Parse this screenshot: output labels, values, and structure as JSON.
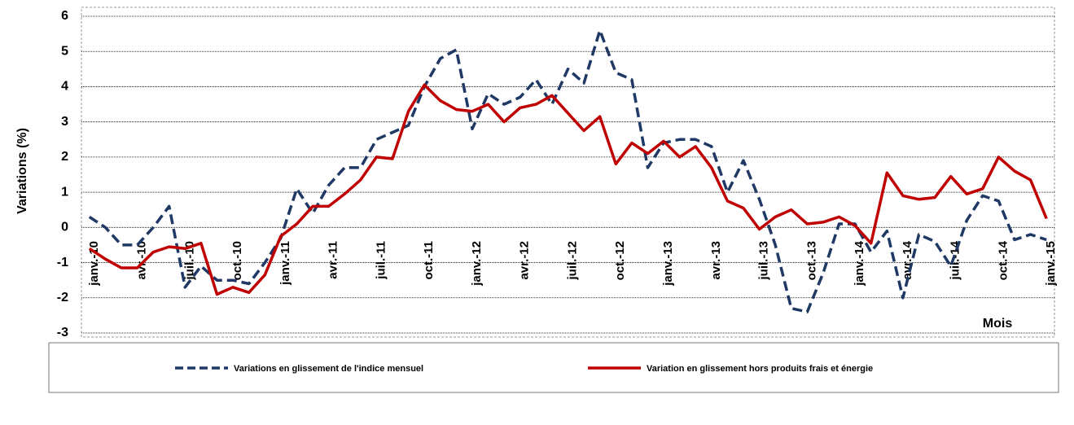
{
  "chart_data": {
    "type": "line",
    "y_label": "Variations (%)",
    "x_label": "Mois",
    "categories": [
      "janv.-10",
      null,
      null,
      "avr.-10",
      null,
      null,
      "juil.-10",
      null,
      null,
      "oct.-10",
      null,
      null,
      "janv.-11",
      null,
      null,
      "avr.-11",
      null,
      null,
      "juil.-11",
      null,
      null,
      "oct.-11",
      null,
      null,
      "janv.-12",
      null,
      null,
      "avr.-12",
      null,
      null,
      "juil.-12",
      null,
      null,
      "oct.-12",
      null,
      null,
      "janv.-13",
      null,
      null,
      "avr.-13",
      null,
      null,
      "juil.-13",
      null,
      null,
      "oct.-13",
      null,
      null,
      "janv.-14",
      null,
      null,
      "avr.-14",
      null,
      null,
      "juil.-14",
      null,
      null,
      "oct.-14",
      null,
      null,
      "janv.-15"
    ],
    "series": [
      {
        "name": "Variations en glissement de l'indice mensuel",
        "color": "#1f3864",
        "dash": true,
        "values": [
          0.3,
          0.0,
          -0.5,
          -0.5,
          0.0,
          0.6,
          -1.7,
          -1.1,
          -1.5,
          -1.5,
          -1.6,
          -1.0,
          -0.3,
          1.1,
          0.4,
          1.2,
          1.7,
          1.7,
          2.5,
          2.7,
          2.9,
          4.0,
          4.8,
          5.05,
          2.8,
          3.8,
          3.5,
          3.7,
          4.2,
          3.5,
          4.5,
          4.1,
          5.6,
          4.4,
          4.2,
          1.7,
          2.4,
          2.5,
          2.5,
          2.3,
          1.0,
          1.9,
          0.8,
          -0.5,
          -2.3,
          -2.4,
          -1.3,
          0.1,
          0.1,
          -0.7,
          -0.1,
          -2.0,
          -0.2,
          -0.4,
          -1.1,
          0.2,
          0.9,
          0.75,
          -0.35,
          -0.2,
          -0.35
        ]
      },
      {
        "name": "Variation en glissement hors produits frais et énergie",
        "color": "#c00000",
        "dash": false,
        "values": [
          -0.6,
          -0.9,
          -1.15,
          -1.15,
          -0.7,
          -0.55,
          -0.6,
          -0.45,
          -1.9,
          -1.7,
          -1.85,
          -1.35,
          -0.25,
          0.1,
          0.6,
          0.6,
          0.95,
          1.35,
          2.0,
          1.95,
          3.3,
          4.05,
          3.6,
          3.35,
          3.3,
          3.5,
          3.0,
          3.4,
          3.5,
          3.75,
          3.25,
          2.75,
          3.15,
          1.8,
          2.4,
          2.1,
          2.45,
          2.0,
          2.3,
          1.7,
          0.75,
          0.55,
          -0.05,
          0.3,
          0.5,
          0.1,
          0.15,
          0.3,
          0.05,
          -0.45,
          1.55,
          0.9,
          0.8,
          0.85,
          1.45,
          0.95,
          1.1,
          2.0,
          1.6,
          1.35,
          0.25
        ]
      }
    ],
    "ylim": [
      -3,
      6
    ],
    "yticks": [
      -3,
      -2,
      -1,
      0,
      1,
      2,
      3,
      4,
      5,
      6
    ],
    "grid": true
  }
}
